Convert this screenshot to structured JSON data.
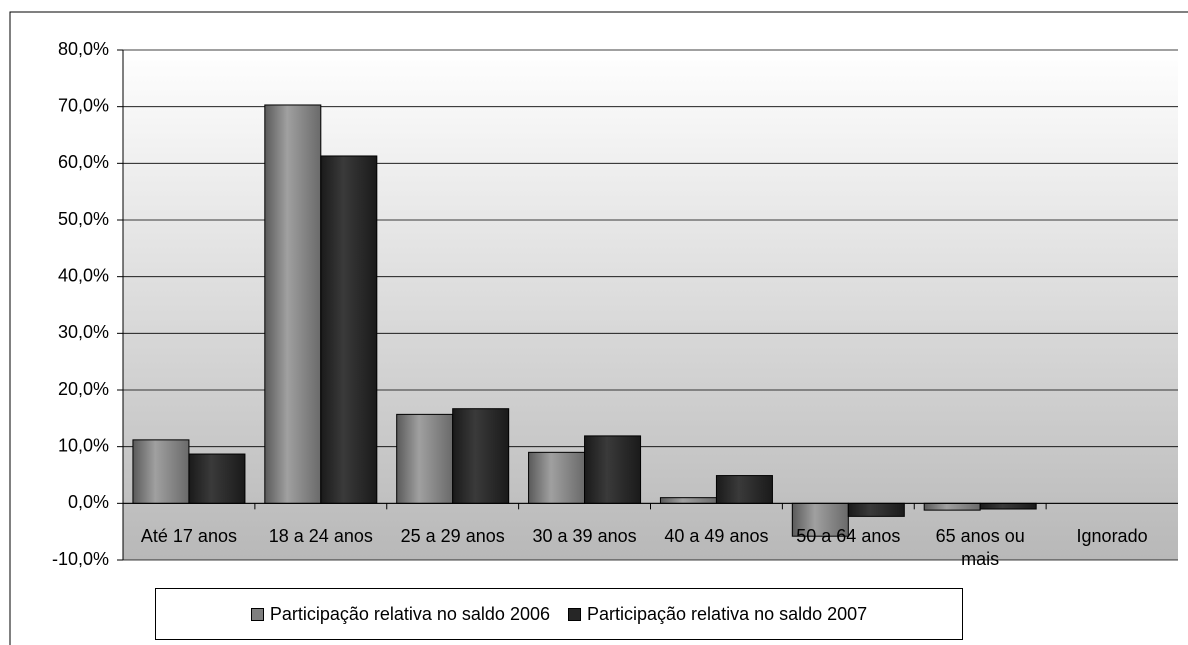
{
  "chart_data": {
    "type": "bar",
    "categories": [
      "Até 17 anos",
      "18 a 24 anos",
      "25 a 29 anos",
      "30 a 39 anos",
      "40 a 49 anos",
      "50 a 64 anos",
      "65 anos ou mais",
      "Ignorado"
    ],
    "series": [
      {
        "name": "Participação relativa no saldo 2006",
        "color": "#7f7f7f",
        "values": [
          11.2,
          70.3,
          15.7,
          9.0,
          1.0,
          -5.8,
          -1.2,
          0
        ]
      },
      {
        "name": "Participação relativa no saldo 2007",
        "color": "#262626",
        "values": [
          8.7,
          61.3,
          16.7,
          11.9,
          4.9,
          -2.3,
          -1.0,
          0
        ]
      }
    ],
    "ylim": [
      -10,
      80
    ],
    "yticks": [
      {
        "value": -10,
        "label": "-10,0%"
      },
      {
        "value": 0,
        "label": "0,0%"
      },
      {
        "value": 10,
        "label": "10,0%"
      },
      {
        "value": 20,
        "label": "20,0%"
      },
      {
        "value": 30,
        "label": "30,0%"
      },
      {
        "value": 40,
        "label": "40,0%"
      },
      {
        "value": 50,
        "label": "50,0%"
      },
      {
        "value": 60,
        "label": "60,0%"
      },
      {
        "value": 70,
        "label": "70,0%"
      },
      {
        "value": 80,
        "label": "80,0%"
      }
    ],
    "grid": true
  }
}
